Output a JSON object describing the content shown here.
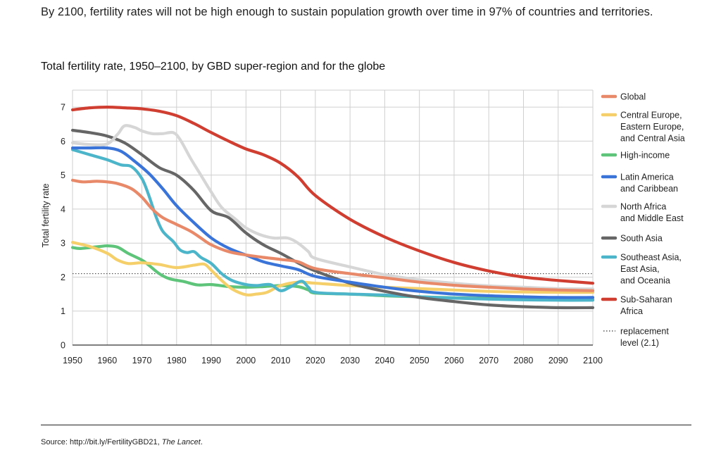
{
  "headline": "By 2100, fertility rates will not be high enough to sustain population growth over time in 97% of countries and territories.",
  "source": {
    "prefix": "Source: http://bit.ly/FertilityGBD21, ",
    "journal": "The Lancet",
    "suffix": "."
  },
  "chart_data": {
    "type": "line",
    "title": "Total fertility rate, 1950–2100, by GBD super-region and for the globe",
    "xlabel": "",
    "ylabel": "Total fertility rate",
    "xlim": [
      1950,
      2100
    ],
    "ylim": [
      0,
      7.5
    ],
    "x_ticks": [
      1950,
      1960,
      1970,
      1980,
      1990,
      2000,
      2010,
      2020,
      2030,
      2040,
      2050,
      2060,
      2070,
      2080,
      2090,
      2100
    ],
    "y_ticks": [
      0,
      1,
      2,
      3,
      4,
      5,
      6,
      7
    ],
    "grid": true,
    "legend_position": "right",
    "reference_line": {
      "label": "replacement level (2.1)",
      "label_lines": [
        "replacement",
        "level (2.1)"
      ],
      "y": 2.1
    },
    "series": [
      {
        "name": "High-income",
        "label_lines": [
          "High-income"
        ],
        "color": "#5ec47a",
        "points": [
          [
            1950,
            2.87
          ],
          [
            1952,
            2.84
          ],
          [
            1955,
            2.87
          ],
          [
            1958,
            2.9
          ],
          [
            1960,
            2.92
          ],
          [
            1963,
            2.88
          ],
          [
            1966,
            2.7
          ],
          [
            1970,
            2.5
          ],
          [
            1972,
            2.35
          ],
          [
            1975,
            2.1
          ],
          [
            1978,
            1.95
          ],
          [
            1982,
            1.87
          ],
          [
            1986,
            1.77
          ],
          [
            1990,
            1.78
          ],
          [
            1995,
            1.72
          ],
          [
            2000,
            1.7
          ],
          [
            2005,
            1.72
          ],
          [
            2010,
            1.75
          ],
          [
            2015,
            1.72
          ],
          [
            2018,
            1.62
          ],
          [
            2020,
            1.53
          ],
          [
            2030,
            1.5
          ],
          [
            2040,
            1.45
          ],
          [
            2050,
            1.42
          ],
          [
            2060,
            1.39
          ],
          [
            2070,
            1.37
          ],
          [
            2080,
            1.35
          ],
          [
            2090,
            1.35
          ],
          [
            2100,
            1.35
          ]
        ]
      },
      {
        "name": "Central Europe, Eastern Europe, and Central Asia",
        "label_lines": [
          "Central Europe,",
          "Eastern Europe,",
          "and Central Asia"
        ],
        "color": "#f5cf6a",
        "points": [
          [
            1950,
            3.02
          ],
          [
            1955,
            2.9
          ],
          [
            1960,
            2.7
          ],
          [
            1963,
            2.5
          ],
          [
            1966,
            2.4
          ],
          [
            1970,
            2.42
          ],
          [
            1975,
            2.37
          ],
          [
            1980,
            2.28
          ],
          [
            1985,
            2.35
          ],
          [
            1988,
            2.38
          ],
          [
            1990,
            2.2
          ],
          [
            1993,
            1.9
          ],
          [
            1996,
            1.65
          ],
          [
            2000,
            1.48
          ],
          [
            2003,
            1.5
          ],
          [
            2006,
            1.55
          ],
          [
            2010,
            1.75
          ],
          [
            2015,
            1.85
          ],
          [
            2020,
            1.82
          ],
          [
            2030,
            1.75
          ],
          [
            2040,
            1.7
          ],
          [
            2050,
            1.66
          ],
          [
            2060,
            1.62
          ],
          [
            2070,
            1.58
          ],
          [
            2080,
            1.56
          ],
          [
            2090,
            1.55
          ],
          [
            2100,
            1.55
          ]
        ]
      },
      {
        "name": "Southeast Asia, East Asia, and Oceania",
        "label_lines": [
          "Southeast Asia,",
          "East Asia,",
          "and Oceania"
        ],
        "color": "#4db5c9",
        "points": [
          [
            1950,
            5.75
          ],
          [
            1955,
            5.6
          ],
          [
            1960,
            5.45
          ],
          [
            1964,
            5.3
          ],
          [
            1967,
            5.25
          ],
          [
            1970,
            4.9
          ],
          [
            1972,
            4.4
          ],
          [
            1974,
            3.8
          ],
          [
            1976,
            3.35
          ],
          [
            1979,
            3.05
          ],
          [
            1981,
            2.8
          ],
          [
            1983,
            2.72
          ],
          [
            1985,
            2.75
          ],
          [
            1987,
            2.58
          ],
          [
            1990,
            2.4
          ],
          [
            1993,
            2.1
          ],
          [
            1996,
            1.9
          ],
          [
            2000,
            1.78
          ],
          [
            2003,
            1.75
          ],
          [
            2007,
            1.78
          ],
          [
            2010,
            1.6
          ],
          [
            2013,
            1.72
          ],
          [
            2016,
            1.88
          ],
          [
            2018,
            1.7
          ],
          [
            2020,
            1.55
          ],
          [
            2030,
            1.5
          ],
          [
            2040,
            1.47
          ],
          [
            2050,
            1.42
          ],
          [
            2060,
            1.38
          ],
          [
            2070,
            1.35
          ],
          [
            2080,
            1.33
          ],
          [
            2090,
            1.32
          ],
          [
            2100,
            1.32
          ]
        ]
      },
      {
        "name": "South Asia",
        "label_lines": [
          "South Asia"
        ],
        "color": "#666666",
        "points": [
          [
            1950,
            6.32
          ],
          [
            1955,
            6.25
          ],
          [
            1960,
            6.15
          ],
          [
            1965,
            5.95
          ],
          [
            1970,
            5.6
          ],
          [
            1975,
            5.22
          ],
          [
            1980,
            5.0
          ],
          [
            1985,
            4.55
          ],
          [
            1990,
            3.95
          ],
          [
            1995,
            3.75
          ],
          [
            2000,
            3.3
          ],
          [
            2005,
            2.95
          ],
          [
            2010,
            2.7
          ],
          [
            2015,
            2.42
          ],
          [
            2020,
            2.18
          ],
          [
            2030,
            1.82
          ],
          [
            2040,
            1.58
          ],
          [
            2050,
            1.4
          ],
          [
            2060,
            1.28
          ],
          [
            2070,
            1.18
          ],
          [
            2080,
            1.13
          ],
          [
            2090,
            1.1
          ],
          [
            2100,
            1.1
          ]
        ]
      },
      {
        "name": "Latin America and Caribbean",
        "label_lines": [
          "Latin America",
          "and Caribbean"
        ],
        "color": "#3b74d9",
        "points": [
          [
            1950,
            5.8
          ],
          [
            1955,
            5.8
          ],
          [
            1960,
            5.8
          ],
          [
            1964,
            5.7
          ],
          [
            1968,
            5.4
          ],
          [
            1972,
            5.05
          ],
          [
            1976,
            4.6
          ],
          [
            1980,
            4.1
          ],
          [
            1985,
            3.6
          ],
          [
            1990,
            3.15
          ],
          [
            1995,
            2.85
          ],
          [
            2000,
            2.65
          ],
          [
            2005,
            2.45
          ],
          [
            2010,
            2.33
          ],
          [
            2015,
            2.22
          ],
          [
            2020,
            2.02
          ],
          [
            2030,
            1.85
          ],
          [
            2040,
            1.7
          ],
          [
            2050,
            1.58
          ],
          [
            2060,
            1.5
          ],
          [
            2070,
            1.45
          ],
          [
            2080,
            1.42
          ],
          [
            2090,
            1.4
          ],
          [
            2100,
            1.4
          ]
        ]
      },
      {
        "name": "North Africa and Middle East",
        "label_lines": [
          "North Africa",
          "and Middle East"
        ],
        "color": "#d6d6d6",
        "points": [
          [
            1950,
            5.95
          ],
          [
            1955,
            5.9
          ],
          [
            1960,
            5.92
          ],
          [
            1963,
            6.2
          ],
          [
            1965,
            6.45
          ],
          [
            1968,
            6.4
          ],
          [
            1970,
            6.3
          ],
          [
            1973,
            6.22
          ],
          [
            1976,
            6.22
          ],
          [
            1979,
            6.25
          ],
          [
            1981,
            6.05
          ],
          [
            1984,
            5.5
          ],
          [
            1987,
            5.0
          ],
          [
            1990,
            4.5
          ],
          [
            1993,
            4.05
          ],
          [
            1997,
            3.7
          ],
          [
            2000,
            3.45
          ],
          [
            2004,
            3.25
          ],
          [
            2008,
            3.15
          ],
          [
            2012,
            3.15
          ],
          [
            2015,
            3.0
          ],
          [
            2018,
            2.75
          ],
          [
            2020,
            2.55
          ],
          [
            2030,
            2.3
          ],
          [
            2040,
            2.07
          ],
          [
            2050,
            1.92
          ],
          [
            2060,
            1.82
          ],
          [
            2070,
            1.74
          ],
          [
            2080,
            1.7
          ],
          [
            2090,
            1.66
          ],
          [
            2100,
            1.65
          ]
        ]
      },
      {
        "name": "Global",
        "label_lines": [
          "Global"
        ],
        "color": "#e8896a",
        "points": [
          [
            1950,
            4.85
          ],
          [
            1953,
            4.8
          ],
          [
            1957,
            4.82
          ],
          [
            1960,
            4.8
          ],
          [
            1963,
            4.75
          ],
          [
            1967,
            4.6
          ],
          [
            1970,
            4.35
          ],
          [
            1973,
            4.0
          ],
          [
            1976,
            3.75
          ],
          [
            1980,
            3.55
          ],
          [
            1984,
            3.35
          ],
          [
            1987,
            3.15
          ],
          [
            1990,
            2.95
          ],
          [
            1995,
            2.75
          ],
          [
            2000,
            2.65
          ],
          [
            2005,
            2.58
          ],
          [
            2010,
            2.52
          ],
          [
            2015,
            2.45
          ],
          [
            2020,
            2.25
          ],
          [
            2030,
            2.1
          ],
          [
            2040,
            1.98
          ],
          [
            2050,
            1.85
          ],
          [
            2060,
            1.76
          ],
          [
            2070,
            1.7
          ],
          [
            2080,
            1.65
          ],
          [
            2090,
            1.62
          ],
          [
            2100,
            1.6
          ]
        ]
      },
      {
        "name": "Sub-Saharan Africa",
        "label_lines": [
          "Sub-Saharan",
          "Africa"
        ],
        "color": "#cf3e30",
        "points": [
          [
            1950,
            6.92
          ],
          [
            1955,
            6.98
          ],
          [
            1960,
            7.0
          ],
          [
            1965,
            6.98
          ],
          [
            1970,
            6.95
          ],
          [
            1975,
            6.88
          ],
          [
            1980,
            6.75
          ],
          [
            1985,
            6.52
          ],
          [
            1990,
            6.25
          ],
          [
            1995,
            6.0
          ],
          [
            2000,
            5.77
          ],
          [
            2005,
            5.6
          ],
          [
            2010,
            5.35
          ],
          [
            2015,
            4.95
          ],
          [
            2020,
            4.4
          ],
          [
            2030,
            3.7
          ],
          [
            2040,
            3.18
          ],
          [
            2050,
            2.77
          ],
          [
            2060,
            2.43
          ],
          [
            2070,
            2.18
          ],
          [
            2080,
            2.0
          ],
          [
            2090,
            1.9
          ],
          [
            2100,
            1.82
          ]
        ]
      }
    ]
  }
}
